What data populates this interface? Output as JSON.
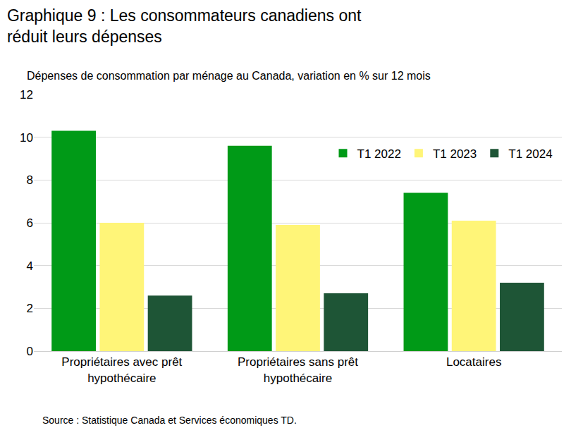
{
  "chart_data": {
    "type": "bar",
    "title": "Graphique 9 : Les consommateurs canadiens ont réduit leurs dépenses",
    "subtitle": "Dépenses de consommation par ménage au Canada, variation en % sur 12 mois",
    "source": "Source : Statistique Canada et Services économiques TD.",
    "categories": [
      "Propriétaires avec prêt hypothécaire",
      "Propriétaires sans prêt hypothécaire",
      "Locataires"
    ],
    "series": [
      {
        "name": "T1 2022",
        "color": "#009A17",
        "values": [
          10.3,
          9.6,
          7.4
        ]
      },
      {
        "name": "T1 2023",
        "color": "#FFF578",
        "values": [
          6.0,
          5.9,
          6.1
        ]
      },
      {
        "name": "T1 2024",
        "color": "#1E5536",
        "values": [
          2.6,
          2.7,
          3.2
        ]
      }
    ],
    "ylim": [
      0,
      12
    ],
    "yticks": [
      0,
      2,
      4,
      6,
      8,
      10,
      12
    ],
    "grid": true,
    "legend": "top right"
  }
}
